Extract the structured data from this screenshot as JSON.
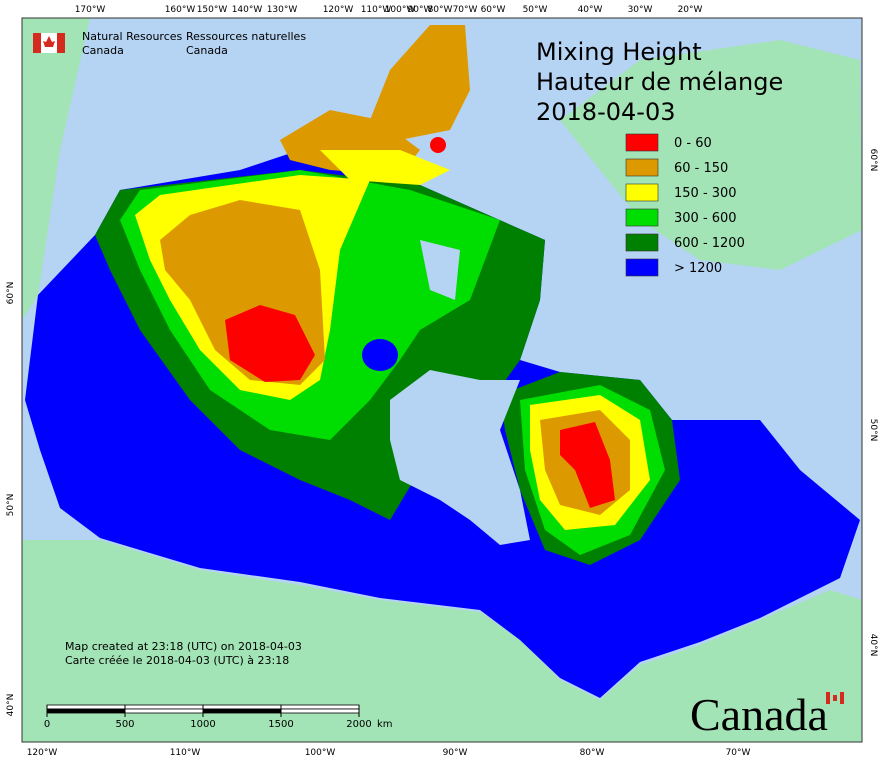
{
  "header": {
    "agency_en": [
      "Natural Resources",
      "Canada"
    ],
    "agency_fr": [
      "Ressources naturelles",
      "Canada"
    ]
  },
  "title": {
    "line1": "Mixing Height",
    "line2": "Hauteur de mélange",
    "date": "2018-04-03"
  },
  "legend": [
    {
      "label": "0 - 60",
      "color": "#ff0000"
    },
    {
      "label": "60 - 150",
      "color": "#dd9a00"
    },
    {
      "label": "150 - 300",
      "color": "#ffff00"
    },
    {
      "label": "300 - 600",
      "color": "#00dd00"
    },
    {
      "label": "600 - 1200",
      "color": "#008000"
    },
    {
      "label": "> 1200",
      "color": "#0000ff"
    }
  ],
  "graticule": {
    "top": [
      "170°W",
      "160°W",
      "150°W",
      "140°W",
      "130°W",
      "120°W",
      "110°W",
      "100°W",
      "90°W",
      "80°W",
      "70°W",
      "60°W",
      "50°W",
      "40°W",
      "30°W",
      "20°W"
    ],
    "bottom": [
      "120°W",
      "110°W",
      "100°W",
      "90°W",
      "80°W",
      "70°W"
    ],
    "left": [
      "60°N",
      "50°N",
      "40°N"
    ],
    "right": [
      "60°N",
      "50°N",
      "40°N"
    ]
  },
  "notes": [
    "Map created at 23:18 (UTC) on 2018-04-03",
    "Carte créée le 2018-04-03 (UTC) à 23:18"
  ],
  "scale_bar": {
    "ticks": [
      0,
      500,
      1000,
      1500,
      2000
    ],
    "unit": "km"
  },
  "wordmark": "Canada"
}
